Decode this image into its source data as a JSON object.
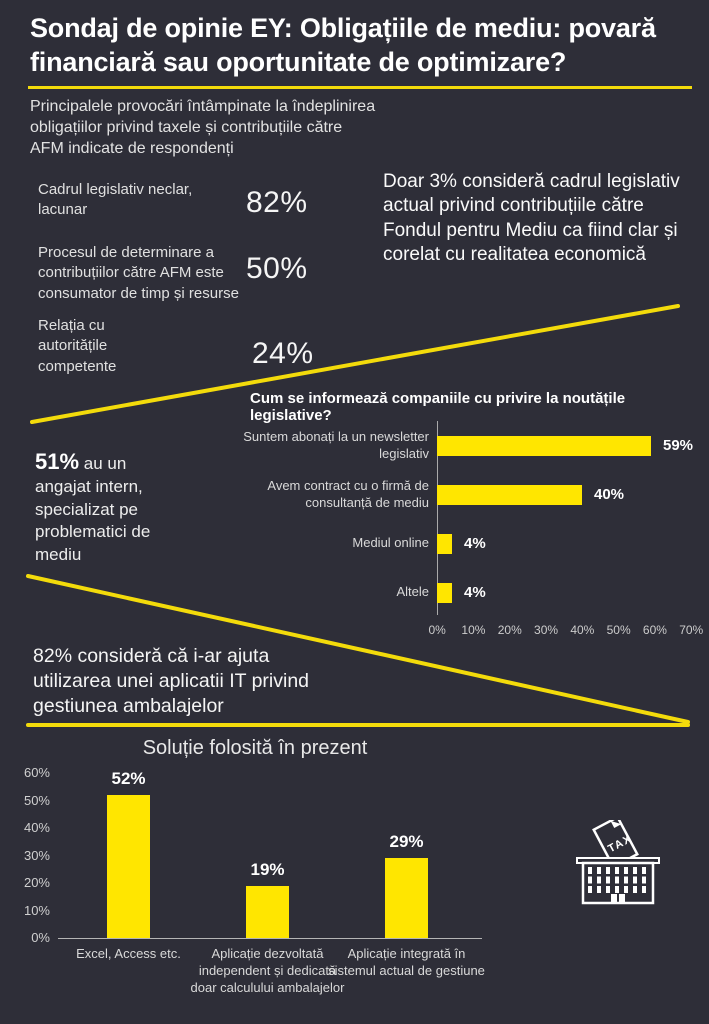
{
  "page": {
    "title": "Sondaj de opinie EY: Obligațiile de mediu: povară financiară sau oportunitate de optimizare?",
    "bg_color": "#2e2e38",
    "accent_yellow": "#ffe600",
    "line_yellow": "#f3db0b"
  },
  "challenges": {
    "intro": "Principalele provocări întâmpinate la îndeplinirea obligațiilor privind taxele și contribuțiile către AFM indicate de respondenți",
    "items": [
      {
        "label": "Cadrul legislativ neclar, lacunar",
        "value": "82%"
      },
      {
        "label": "Procesul de determinare a contribuțiilor către AFM este consumator de timp și resurse",
        "value": "50%"
      },
      {
        "label": "Relația cu autoritățile competente",
        "value": "24%"
      }
    ],
    "aside": "Doar 3% consideră cadrul legislativ actual privind contribuțiile către Fondul pentru Mediu ca fiind clar și corelat cu realitatea economică"
  },
  "stat_51": {
    "value": "51%",
    "text": " au un angajat intern, specializat pe problematici de mediu"
  },
  "stat_82": "82% consideră că i-ar ajuta utilizarea unei aplicatii IT privind gestiunea ambalajelor",
  "icons": {
    "tax_building": "tax-building-icon",
    "tax_label": "TAX"
  },
  "chart_data": [
    {
      "type": "bar",
      "orientation": "horizontal",
      "title": "Cum se informează companiile cu privire la noutățile legislative?",
      "categories": [
        "Suntem abonați la un newsletter legislativ",
        "Avem contract cu o firmă de consultanță de mediu",
        "Mediul online",
        "Altele"
      ],
      "values": [
        59,
        40,
        4,
        4
      ],
      "value_labels": [
        "59%",
        "40%",
        "4%",
        "4%"
      ],
      "xlim": [
        0,
        70
      ],
      "x_ticks": [
        "0%",
        "10%",
        "20%",
        "30%",
        "40%",
        "50%",
        "60%",
        "70%"
      ],
      "bar_color": "#ffe600",
      "grid": false,
      "legend": "none"
    },
    {
      "type": "bar",
      "orientation": "vertical",
      "title": "Soluție folosită în prezent",
      "categories": [
        "Excel, Access etc.",
        "Aplicație dezvoltată independent și dedicată doar calculului ambalajelor",
        "Aplicație integrată în sistemul actual de gestiune"
      ],
      "values": [
        52,
        19,
        29
      ],
      "value_labels": [
        "52%",
        "19%",
        "29%"
      ],
      "ylim": [
        0,
        60
      ],
      "y_ticks": [
        "60%",
        "50%",
        "40%",
        "30%",
        "20%",
        "10%",
        "0%"
      ],
      "bar_color": "#ffe600",
      "grid": false,
      "legend": "none"
    }
  ]
}
